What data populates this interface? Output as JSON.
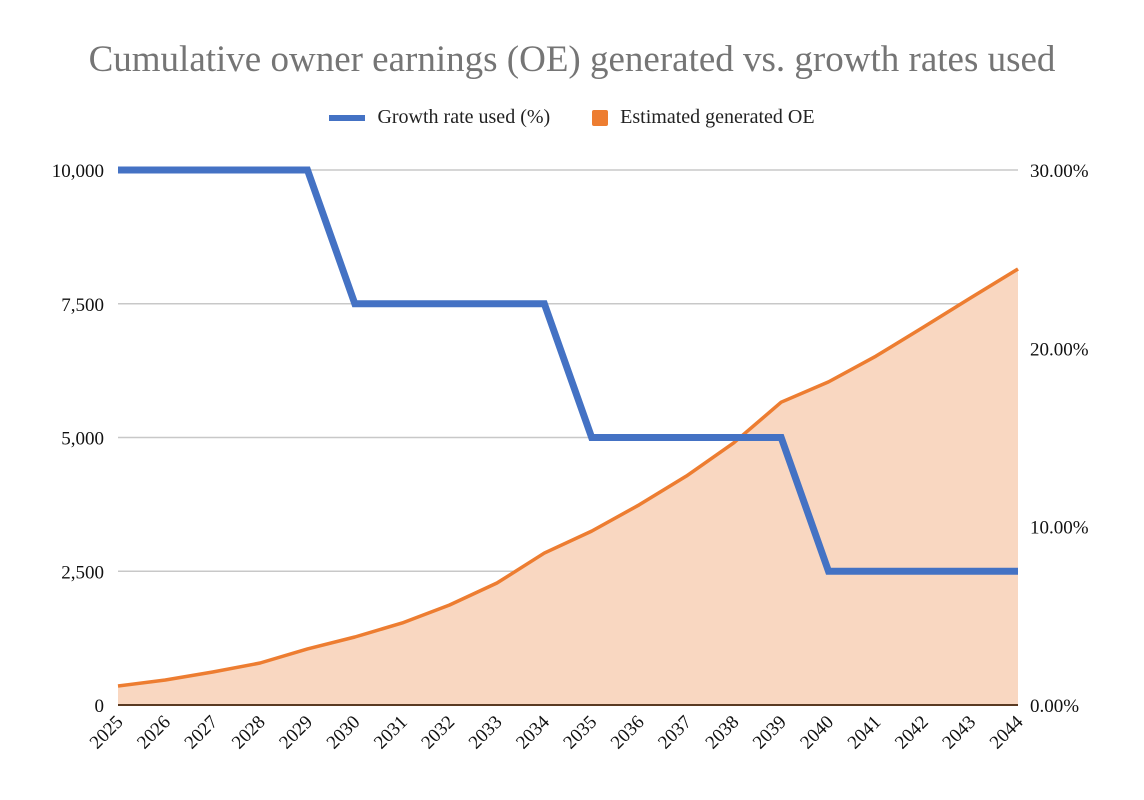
{
  "chart_data": {
    "type": "line",
    "title": "Cumulative owner earnings (OE) generated vs. growth rates used",
    "categories": [
      "2025",
      "2026",
      "2027",
      "2028",
      "2029",
      "2030",
      "2031",
      "2032",
      "2033",
      "2034",
      "2035",
      "2036",
      "2037",
      "2038",
      "2039",
      "2040",
      "2041",
      "2042",
      "2043",
      "2044"
    ],
    "series": [
      {
        "name": "Growth rate used (%)",
        "axis": "right",
        "style": "line",
        "color": "#4472C4",
        "values": [
          30,
          30,
          30,
          30,
          30,
          22.5,
          22.5,
          22.5,
          22.5,
          22.5,
          15,
          15,
          15,
          15,
          15,
          7.5,
          7.5,
          7.5,
          7.5,
          7.5
        ]
      },
      {
        "name": "Estimated generated OE",
        "axis": "left",
        "style": "area",
        "color": "#ED7D31",
        "fill": "#F9D7C1",
        "values": [
          355,
          467,
          617,
          785,
          1047,
          1271,
          1533,
          1869,
          2280,
          2840,
          3250,
          3740,
          4280,
          4900,
          5660,
          6040,
          6520,
          7060,
          7610,
          8150
        ]
      }
    ],
    "left_axis": {
      "ylim": [
        0,
        10000
      ],
      "ticks": [
        "0",
        "2,500",
        "5,000",
        "7,500",
        "10,000"
      ],
      "tick_values": [
        0,
        2500,
        5000,
        7500,
        10000
      ]
    },
    "right_axis": {
      "ylim": [
        0,
        30
      ],
      "ticks": [
        "0.00%",
        "10.00%",
        "20.00%",
        "30.00%"
      ],
      "tick_values": [
        0,
        10,
        20,
        30
      ]
    },
    "grid": true,
    "legend_position": "top-center"
  }
}
